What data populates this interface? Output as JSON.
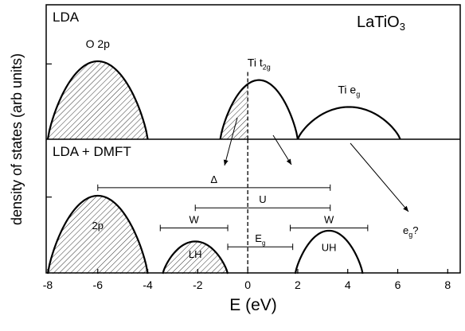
{
  "chart_data": [
    {
      "type": "dos",
      "title": "LDA",
      "annotation": {
        "text": "LaTiO",
        "sub": "3"
      },
      "xlim": [
        -8,
        8.5
      ],
      "ylim": [
        0,
        1
      ],
      "yticks": [
        0.56
      ],
      "fermi_level": 0,
      "peaks": [
        {
          "label": {
            "text": "O 2p"
          },
          "start": -8,
          "end": -4,
          "height": 0.58,
          "hatch_to": -4
        },
        {
          "label": {
            "text": "Ti t",
            "sub": "2g"
          },
          "start": -1.1,
          "end": 2,
          "height": 0.44,
          "hatch_to": 0
        },
        {
          "label": {
            "text": "Ti e",
            "sub": "g"
          },
          "start": 2,
          "end": 6.1,
          "height": 0.24
        }
      ]
    },
    {
      "type": "dos",
      "title": "LDA + DMFT",
      "xlim": [
        -8,
        8.5
      ],
      "ylim": [
        0,
        1
      ],
      "yticks": [
        0.57
      ],
      "fermi_level": 0,
      "xticks": [
        -8,
        -6,
        -4,
        -2,
        0,
        2,
        4,
        6,
        8
      ],
      "xlabel": "E (eV)",
      "ylabel": "density of states (arb units)",
      "peaks": [
        {
          "label": {
            "text": "2p"
          },
          "start": -8,
          "end": -4,
          "height": 0.58,
          "hatch_to": -4
        },
        {
          "label": {
            "text": "LH"
          },
          "start": -3.4,
          "end": -0.8,
          "height": 0.24,
          "hatch_to": -0.8
        },
        {
          "label": {
            "text": "UH"
          },
          "start": 1.9,
          "end": 4.6,
          "height": 0.32
        }
      ],
      "intervals": [
        {
          "label": {
            "text": "Δ"
          },
          "start": -6,
          "end": 3.3,
          "y": 0.64
        },
        {
          "label": {
            "text": "U"
          },
          "start": -2.1,
          "end": 3.3,
          "y": 0.49
        },
        {
          "label": {
            "text": "W"
          },
          "start": -3.5,
          "end": -0.8,
          "y": 0.34
        },
        {
          "label": {
            "text": "W"
          },
          "start": 1.7,
          "end": 4.8,
          "y": 0.34
        },
        {
          "label": {
            "text": "E",
            "sub": "g"
          },
          "start": -0.8,
          "end": 1.8,
          "y": 0.2
        }
      ],
      "note": {
        "text": "e",
        "sub": "g",
        "tail": "?"
      }
    }
  ]
}
